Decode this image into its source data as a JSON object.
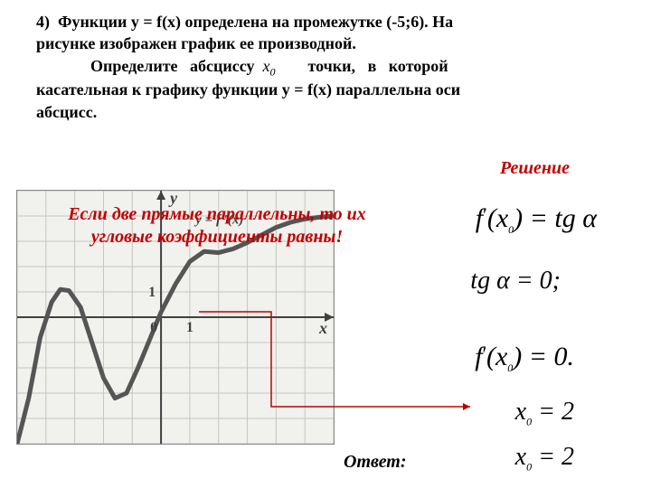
{
  "problem": {
    "number": "4)",
    "line1_a": "Функции у = f(x) определена на промежутке (-5;6). На",
    "line2": "рисунке изображен график ее производной.",
    "line3_a": "Определите",
    "line3_b": "абсциссу",
    "line3_var": "x",
    "line3_sub": "0",
    "line3_c": "точки,",
    "line3_d": "в",
    "line3_e": "которой",
    "line4": "касательная к графику функции у = f(x) параллельна оси",
    "line5": "абсцисс."
  },
  "solution_label": "Решение",
  "warning": {
    "l1": "Если две прямые параллельны, то их",
    "l2": "угловые коэффициенты равны!"
  },
  "formulas": {
    "f1_a": "f",
    "f1_prime": "′",
    "f1_b": "(x",
    "f1_sub": "0",
    "f1_c": ") = tg α",
    "f2": "tg α = 0;",
    "f3_a": "f",
    "f3_prime": "′",
    "f3_b": "(x",
    "f3_sub": "0",
    "f3_c": ") = 0.",
    "f4_a": "x",
    "f4_sub": "0",
    "f4_b": " = 2",
    "f5_a": "x",
    "f5_sub": "0",
    "f5_b": " = 2"
  },
  "answer_label": "Ответ:",
  "graph": {
    "background": "#f1f1ee",
    "grid_color": "#c5c5c0",
    "border_color": "#888888",
    "axis_color": "#404040",
    "curve_color": "#555555",
    "curve_width": 5,
    "x_range": [
      -5,
      6
    ],
    "y_range": [
      -5,
      5
    ],
    "origin_label": "0",
    "unit_label": "1",
    "x_axis_label": "x",
    "y_axis_label": "y",
    "fn_label": "y = f ′(x)",
    "curve_points": [
      [
        -5,
        -5
      ],
      [
        -4.6,
        -3.2
      ],
      [
        -4.2,
        -0.8
      ],
      [
        -3.8,
        0.6
      ],
      [
        -3.5,
        1.1
      ],
      [
        -3.2,
        1.05
      ],
      [
        -2.8,
        0.4
      ],
      [
        -2.4,
        -1.0
      ],
      [
        -2.0,
        -2.4
      ],
      [
        -1.6,
        -3.2
      ],
      [
        -1.2,
        -3.0
      ],
      [
        -0.8,
        -2.0
      ],
      [
        -0.4,
        -0.9
      ],
      [
        0,
        0.2
      ],
      [
        0.5,
        1.3
      ],
      [
        1.0,
        2.2
      ],
      [
        1.5,
        2.6
      ],
      [
        2.0,
        2.55
      ],
      [
        2.5,
        2.7
      ],
      [
        3.0,
        2.95
      ],
      [
        3.5,
        3.25
      ],
      [
        4.0,
        3.55
      ],
      [
        4.5,
        3.75
      ],
      [
        5.0,
        3.88
      ],
      [
        5.5,
        3.95
      ],
      [
        6.0,
        4.0
      ]
    ]
  },
  "arrow": {
    "color": "#c00000",
    "width": 1.5
  }
}
